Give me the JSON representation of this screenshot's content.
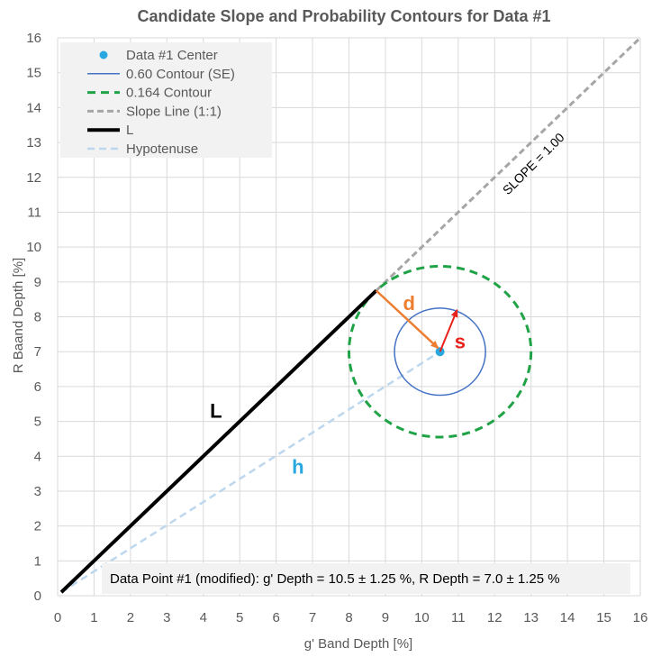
{
  "chart_data": {
    "type": "scatter",
    "title": "Candidate Slope and Probability Contours for Data #1",
    "xlabel": "g' Band Depth [%]",
    "ylabel": "R Baand Depth [%]",
    "xlim": [
      0,
      16
    ],
    "ylim": [
      0,
      16
    ],
    "x_ticks": [
      "0",
      "1",
      "2",
      "3",
      "4",
      "5",
      "6",
      "7",
      "8",
      "9",
      "10",
      "11",
      "12",
      "13",
      "14",
      "15",
      "16"
    ],
    "y_ticks": [
      "0",
      "1",
      "2",
      "3",
      "4",
      "5",
      "6",
      "7",
      "8",
      "9",
      "10",
      "11",
      "12",
      "13",
      "14",
      "15",
      "16"
    ],
    "grid": true,
    "legend_position": "top-left",
    "series": [
      {
        "name": "Data #1 Center",
        "kind": "point",
        "color": "#29a8e0",
        "x": 10.5,
        "y": 7.0
      },
      {
        "name": "0.60 Contour (SE)",
        "kind": "ellipse",
        "color": "#4472c4",
        "cx": 10.5,
        "cy": 7.0,
        "rx": 1.25,
        "ry": 1.25
      },
      {
        "name": "0.164 Contour",
        "kind": "ellipse",
        "color": "#1fa346",
        "cx": 10.5,
        "cy": 7.0,
        "rx": 2.5,
        "ry": 2.45
      },
      {
        "name": "Slope Line (1:1)",
        "kind": "line",
        "color": "#a6a6a6",
        "x": [
          8.75,
          16
        ],
        "y": [
          8.75,
          16
        ]
      },
      {
        "name": "L",
        "kind": "line",
        "color": "#000000",
        "x": [
          0.1,
          8.75
        ],
        "y": [
          0.1,
          8.75
        ]
      },
      {
        "name": "Hypotenuse",
        "kind": "line",
        "color": "#bdd7ee",
        "x": [
          0.1,
          10.5
        ],
        "y": [
          0.1,
          7.0
        ]
      }
    ],
    "arrows": [
      {
        "label": "d",
        "color": "#ed7d31",
        "from": [
          8.75,
          8.75
        ],
        "to": [
          10.45,
          7.1
        ]
      },
      {
        "label": "s",
        "color": "#e8221b",
        "from": [
          10.5,
          7.0
        ],
        "to": [
          10.97,
          8.2
        ]
      }
    ],
    "annotations": {
      "L_label": "L",
      "h_label": "h",
      "slope_label": "SLOPE = 1.00",
      "note": "Data Point #1 (modified): g' Depth = 10.5 ± 1.25 %, R Depth = 7.0 ± 1.25 %"
    },
    "colors": {
      "L_label": "#000000",
      "h_label": "#29a8e0",
      "d_label": "#ed7d31",
      "s_label": "#e8221b",
      "grid": "#d9d9d9",
      "legend_bg": "#f2f2f2",
      "note_bg": "#f2f2f2"
    }
  }
}
